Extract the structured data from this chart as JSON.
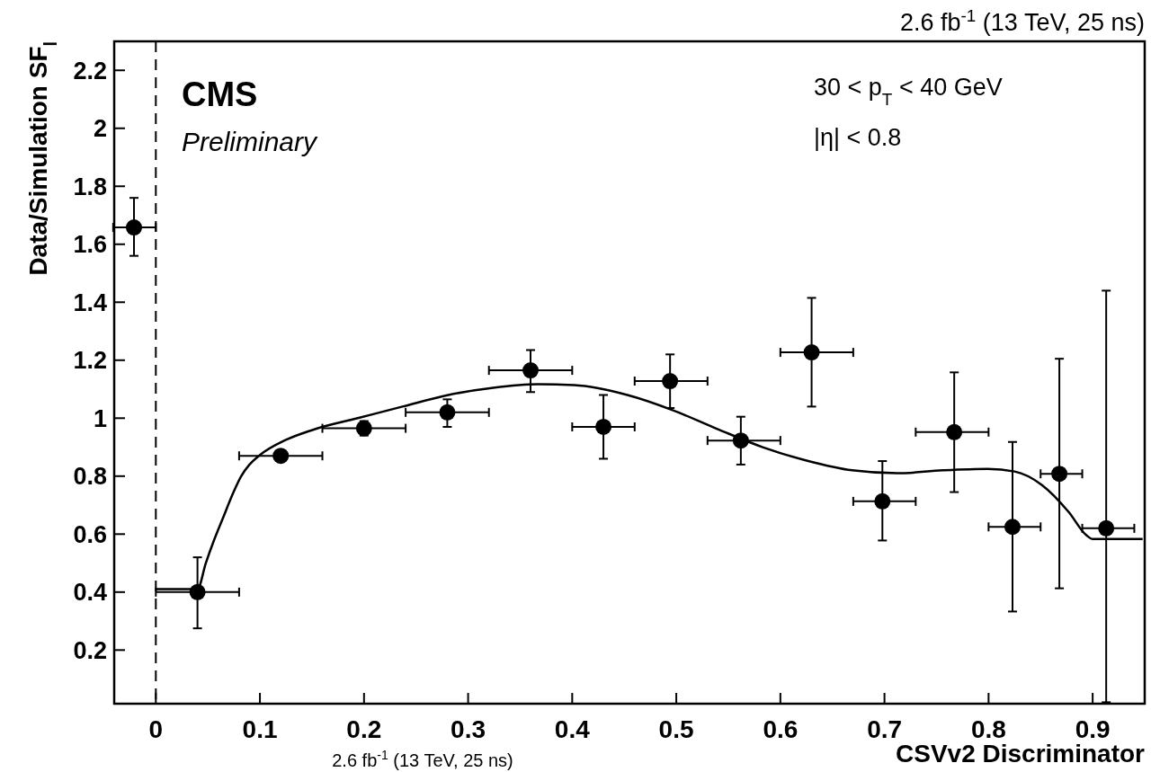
{
  "chart_data": {
    "type": "scatter",
    "title": "2.6 fb$^{-1}$ (13 TeV, 25 ns)",
    "xlabel": "CSVv2 Discriminator",
    "ylabel": "Data/Simulation SF$_{l}$",
    "annotations": [
      "CMS",
      "Preliminary",
      "30 < p$_{T}$ < 40 GeV",
      "|η| < 0.8",
      "2.6 fb$^{-1}$ (13 TeV, 25 ns)"
    ],
    "xlim": [
      -0.04,
      0.95
    ],
    "xticks": [
      0,
      0.1,
      0.2,
      0.3,
      0.4,
      0.5,
      0.6,
      0.7,
      0.8,
      0.9
    ],
    "ylim": [
      0.015,
      2.3
    ],
    "yticks": [
      0.2,
      0.4,
      0.6,
      0.8,
      1,
      1.2,
      1.4,
      1.6,
      1.8,
      2,
      2.2
    ],
    "grid": false,
    "ref_lines": [
      {
        "axis": "x",
        "value": 0,
        "line_style": "dashed",
        "color": "#000000"
      }
    ],
    "series": [
      {
        "type": "scatter",
        "color": "#000000",
        "marker": "circle",
        "x": [
          -0.021,
          0.04,
          0.12,
          0.2,
          0.28,
          0.36,
          0.43,
          0.494,
          0.562,
          0.63,
          0.698,
          0.767,
          0.823,
          0.868,
          0.913
        ],
        "values": [
          1.658,
          0.4,
          0.87,
          0.965,
          1.02,
          1.165,
          0.97,
          1.128,
          0.923,
          1.227,
          0.713,
          0.952,
          0.625,
          0.808,
          0.62
        ],
        "errors": [
          [
            1.56,
            1.76
          ],
          [
            0.275,
            0.52
          ],
          null,
          [
            0.94,
            0.99
          ],
          [
            0.97,
            1.065
          ],
          [
            1.09,
            1.235
          ],
          [
            0.86,
            1.08
          ],
          [
            1.035,
            1.22
          ],
          [
            0.84,
            1.005
          ],
          [
            1.04,
            1.415
          ],
          [
            0.578,
            0.852
          ],
          [
            0.745,
            1.158
          ],
          [
            0.333,
            0.918
          ],
          [
            0.413,
            1.205
          ],
          [
            0.02,
            1.44
          ]
        ],
        "xerrors": [
          [
            -0.041,
            0
          ],
          [
            0,
            0.08
          ],
          [
            0.08,
            0.16
          ],
          [
            0.16,
            0.24
          ],
          [
            0.24,
            0.32
          ],
          [
            0.32,
            0.4
          ],
          [
            0.4,
            0.46
          ],
          [
            0.46,
            0.53
          ],
          [
            0.53,
            0.6
          ],
          [
            0.6,
            0.67
          ],
          [
            0.67,
            0.73
          ],
          [
            0.73,
            0.8
          ],
          [
            0.8,
            0.85
          ],
          [
            0.85,
            0.89
          ],
          [
            0.89,
            0.94
          ]
        ]
      },
      {
        "type": "line",
        "color": "#000000",
        "marker": "none",
        "line_style": "solid",
        "x": [
          0,
          0.04,
          0.048,
          0.056,
          0.065,
          0.074,
          0.082,
          0.09,
          0.099,
          0.125,
          0.151,
          0.194,
          0.237,
          0.281,
          0.324,
          0.367,
          0.402,
          0.453,
          0.497,
          0.54,
          0.583,
          0.626,
          0.669,
          0.712,
          0.756,
          0.799,
          0.825,
          0.851,
          0.877,
          0.894,
          0.9,
          0.948
        ],
        "values": [
          0.41,
          0.41,
          0.5,
          0.58,
          0.66,
          0.74,
          0.8,
          0.84,
          0.87,
          0.925,
          0.96,
          1.0,
          1.04,
          1.08,
          1.105,
          1.117,
          1.114,
          1.08,
          1.027,
          0.962,
          0.9,
          0.853,
          0.82,
          0.81,
          0.82,
          0.825,
          0.816,
          0.77,
          0.676,
          0.596,
          0.583,
          0.583
        ]
      }
    ]
  }
}
